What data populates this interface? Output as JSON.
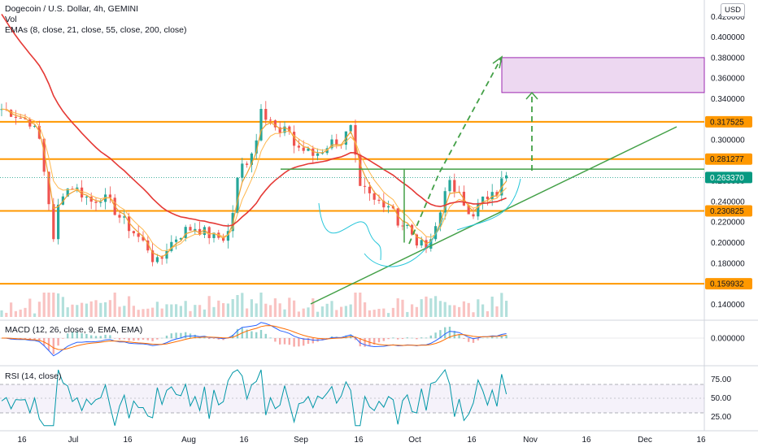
{
  "header": {
    "title": "Dogecoin / U.S. Dollar, 4h, GEMINI",
    "vol_label": "Vol",
    "ema_label": "EMAs (8, close, 21, close, 55, close, 200, close)",
    "currency_badge": "USD"
  },
  "indicators": {
    "macd_label": "MACD (12, 26, close, 9, EMA, EMA)",
    "rsi_label": "RSI (14, close)"
  },
  "colors": {
    "up": "#26a69a",
    "down": "#ef5350",
    "ema_fast": "#f0a030",
    "ema_slow": "#e53935",
    "level": "#ff9800",
    "trend": "#43a047",
    "target_box": "#e1bee7",
    "target_border": "#9c27b0",
    "cup": "#26c6da",
    "current_price": "#089981"
  },
  "chart_data": {
    "type": "candlestick",
    "x_ticks": [
      "16",
      "Jul",
      "16",
      "Aug",
      "16",
      "Sep",
      "16",
      "Oct",
      "16",
      "Nov",
      "16",
      "Dec",
      "16"
    ],
    "y_ticks": [
      "0.420000",
      "0.400000",
      "0.380000",
      "0.360000",
      "0.340000",
      "0.320000",
      "0.300000",
      "0.280000",
      "0.260000",
      "0.240000",
      "0.220000",
      "0.200000",
      "0.180000",
      "0.160000",
      "0.140000"
    ],
    "ylim": [
      0.13,
      0.425
    ],
    "levels": [
      {
        "price": 0.317525,
        "label": "0.317525"
      },
      {
        "price": 0.281277,
        "label": "0.281277"
      },
      {
        "price": 0.230825,
        "label": "0.230825"
      },
      {
        "price": 0.159932,
        "label": "0.159932"
      }
    ],
    "current_price": {
      "price": 0.26337,
      "label": "0.263370"
    },
    "target_zone": [
      0.346,
      0.38
    ],
    "macd": {
      "y_ticks": [
        "0.000000"
      ]
    },
    "rsi": {
      "y_ticks": [
        "75.00",
        "50.00",
        "25.00"
      ],
      "upper": 70,
      "lower": 30
    },
    "close_path": [
      [
        0,
        0.33
      ],
      [
        2,
        0.327
      ],
      [
        4,
        0.322
      ],
      [
        6,
        0.318
      ],
      [
        8,
        0.3
      ],
      [
        9,
        0.27
      ],
      [
        10,
        0.24
      ],
      [
        11,
        0.2
      ],
      [
        12,
        0.235
      ],
      [
        13,
        0.25
      ],
      [
        15,
        0.255
      ],
      [
        17,
        0.248
      ],
      [
        19,
        0.24
      ],
      [
        21,
        0.245
      ],
      [
        23,
        0.238
      ],
      [
        25,
        0.225
      ],
      [
        27,
        0.215
      ],
      [
        29,
        0.205
      ],
      [
        31,
        0.195
      ],
      [
        32,
        0.185
      ],
      [
        33,
        0.18
      ],
      [
        34,
        0.185
      ],
      [
        35,
        0.195
      ],
      [
        37,
        0.205
      ],
      [
        39,
        0.212
      ],
      [
        41,
        0.215
      ],
      [
        43,
        0.21
      ],
      [
        45,
        0.205
      ],
      [
        47,
        0.205
      ],
      [
        48,
        0.21
      ],
      [
        49,
        0.23
      ],
      [
        50,
        0.26
      ],
      [
        51,
        0.275
      ],
      [
        52,
        0.28
      ],
      [
        53,
        0.29
      ],
      [
        54,
        0.3
      ],
      [
        55,
        0.335
      ],
      [
        56,
        0.325
      ],
      [
        57,
        0.32
      ],
      [
        58,
        0.31
      ],
      [
        59,
        0.305
      ],
      [
        61,
        0.31
      ],
      [
        62,
        0.295
      ],
      [
        64,
        0.29
      ],
      [
        66,
        0.285
      ],
      [
        68,
        0.29
      ],
      [
        69,
        0.295
      ],
      [
        71,
        0.3
      ],
      [
        72,
        0.298
      ],
      [
        73,
        0.305
      ],
      [
        74,
        0.31
      ],
      [
        75,
        0.28
      ],
      [
        76,
        0.25
      ],
      [
        77,
        0.25
      ],
      [
        79,
        0.24
      ],
      [
        81,
        0.24
      ],
      [
        83,
        0.235
      ],
      [
        84,
        0.22
      ],
      [
        86,
        0.215
      ],
      [
        87,
        0.205
      ],
      [
        88,
        0.2
      ],
      [
        89,
        0.197
      ],
      [
        90,
        0.2
      ],
      [
        91,
        0.205
      ],
      [
        92,
        0.215
      ],
      [
        93,
        0.23
      ],
      [
        94,
        0.255
      ],
      [
        95,
        0.255
      ],
      [
        96,
        0.25
      ],
      [
        97,
        0.245
      ],
      [
        98,
        0.235
      ],
      [
        99,
        0.228
      ],
      [
        100,
        0.23
      ],
      [
        101,
        0.235
      ],
      [
        102,
        0.24
      ],
      [
        103,
        0.245
      ],
      [
        104,
        0.255
      ],
      [
        105,
        0.25
      ],
      [
        106,
        0.26
      ],
      [
        107,
        0.263
      ]
    ]
  }
}
